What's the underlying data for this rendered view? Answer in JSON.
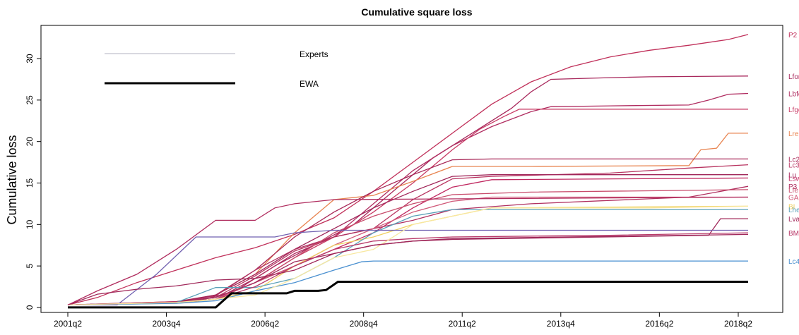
{
  "chart_data": {
    "type": "line",
    "title": "Cumulative square loss",
    "xlabel": "",
    "ylabel": "Cumulative loss",
    "xlim": [
      2001.25,
      2018.9
    ],
    "ylim": [
      -0.6,
      34
    ],
    "x_tick_labels": [
      "2001q2",
      "2003q4",
      "2006q2",
      "2008q4",
      "2011q2",
      "2013q4",
      "2016q2",
      "2018q2"
    ],
    "x_tick_values": [
      2001.25,
      2003.75,
      2006.25,
      2008.75,
      2011.25,
      2013.75,
      2016.25,
      2018.25
    ],
    "y_ticks": [
      0,
      5,
      10,
      15,
      20,
      25,
      30
    ],
    "legend": {
      "position": "top-left",
      "items": [
        {
          "label": "Experts",
          "color": "#b0b0c0"
        },
        {
          "label": "EWA",
          "color": "#000000"
        }
      ]
    },
    "grid": false,
    "series": [
      {
        "name": "P2",
        "color": "#c0305a",
        "points": [
          [
            2001.25,
            0.3
          ],
          [
            2002.0,
            1.2
          ],
          [
            2003.0,
            3.0
          ],
          [
            2004.0,
            4.5
          ],
          [
            2005.0,
            6.0
          ],
          [
            2006.0,
            7.2
          ],
          [
            2007.0,
            8.8
          ],
          [
            2008.0,
            10.8
          ],
          [
            2009.0,
            14.0
          ],
          [
            2010.0,
            17.5
          ],
          [
            2011.0,
            21.0
          ],
          [
            2012.0,
            24.5
          ],
          [
            2013.0,
            27.2
          ],
          [
            2014.0,
            29.0
          ],
          [
            2015.0,
            30.2
          ],
          [
            2016.0,
            31.0
          ],
          [
            2017.0,
            31.6
          ],
          [
            2018.0,
            32.3
          ],
          [
            2018.5,
            32.9
          ]
        ]
      },
      {
        "name": "Lfor",
        "color": "#a8285c",
        "points": [
          [
            2001.25,
            0.3
          ],
          [
            2003.0,
            0.5
          ],
          [
            2004.5,
            0.7
          ],
          [
            2005.5,
            2.0
          ],
          [
            2006.5,
            5.0
          ],
          [
            2007.5,
            7.5
          ],
          [
            2008.5,
            10.0
          ],
          [
            2009.5,
            14.0
          ],
          [
            2010.5,
            18.0
          ],
          [
            2011.5,
            21.0
          ],
          [
            2012.5,
            24.0
          ],
          [
            2013.0,
            26.0
          ],
          [
            2013.5,
            27.5
          ],
          [
            2015.0,
            27.7
          ],
          [
            2016.0,
            27.8
          ],
          [
            2018.5,
            27.9
          ]
        ]
      },
      {
        "name": "Lbfc",
        "color": "#b02c60",
        "points": [
          [
            2001.25,
            0.3
          ],
          [
            2004.0,
            0.6
          ],
          [
            2005.0,
            1.0
          ],
          [
            2006.0,
            3.5
          ],
          [
            2007.0,
            6.5
          ],
          [
            2008.0,
            8.5
          ],
          [
            2009.0,
            12.5
          ],
          [
            2010.0,
            16.5
          ],
          [
            2011.0,
            19.5
          ],
          [
            2012.0,
            21.8
          ],
          [
            2013.0,
            23.6
          ],
          [
            2013.5,
            24.2
          ],
          [
            2015.0,
            24.3
          ],
          [
            2017.0,
            24.4
          ],
          [
            2017.5,
            25.0
          ],
          [
            2018.0,
            25.7
          ],
          [
            2018.5,
            25.8
          ]
        ]
      },
      {
        "name": "Lfgc",
        "color": "#c83c66",
        "points": [
          [
            2001.25,
            0.3
          ],
          [
            2004.0,
            0.6
          ],
          [
            2005.0,
            1.0
          ],
          [
            2006.0,
            3.0
          ],
          [
            2007.0,
            6.0
          ],
          [
            2008.0,
            8.5
          ],
          [
            2009.0,
            11.5
          ],
          [
            2010.0,
            15.0
          ],
          [
            2011.0,
            19.0
          ],
          [
            2011.7,
            21.5
          ],
          [
            2012.3,
            23.0
          ],
          [
            2012.7,
            23.9
          ],
          [
            2018.5,
            23.9
          ]
        ]
      },
      {
        "name": "Lre",
        "color": "#e88450",
        "points": [
          [
            2001.25,
            0.3
          ],
          [
            2004.0,
            0.6
          ],
          [
            2005.0,
            1.5
          ],
          [
            2006.0,
            4.0
          ],
          [
            2007.0,
            9.0
          ],
          [
            2008.0,
            13.0
          ],
          [
            2009.0,
            13.5
          ],
          [
            2010.0,
            15.2
          ],
          [
            2011.0,
            17.0
          ],
          [
            2013.0,
            17.0
          ],
          [
            2017.0,
            17.1
          ],
          [
            2017.3,
            19.0
          ],
          [
            2017.7,
            19.2
          ],
          [
            2018.0,
            21.0
          ],
          [
            2018.5,
            21.0
          ]
        ]
      },
      {
        "name": "Lc2",
        "color": "#a82858",
        "points": [
          [
            2001.25,
            0.3
          ],
          [
            2004.0,
            0.7
          ],
          [
            2005.0,
            1.5
          ],
          [
            2006.0,
            4.5
          ],
          [
            2007.0,
            8.5
          ],
          [
            2008.0,
            11.5
          ],
          [
            2009.0,
            14.0
          ],
          [
            2010.0,
            16.0
          ],
          [
            2011.0,
            17.8
          ],
          [
            2012.0,
            17.9
          ],
          [
            2018.5,
            17.9
          ]
        ]
      },
      {
        "name": "Lc3",
        "color": "#b83460",
        "points": [
          [
            2001.25,
            0.3
          ],
          [
            2004.0,
            0.7
          ],
          [
            2005.0,
            1.2
          ],
          [
            2006.0,
            3.8
          ],
          [
            2007.0,
            6.8
          ],
          [
            2008.0,
            8.5
          ],
          [
            2009.0,
            9.5
          ],
          [
            2010.0,
            13.0
          ],
          [
            2011.0,
            15.5
          ],
          [
            2012.0,
            15.8
          ],
          [
            2015.0,
            16.2
          ],
          [
            2017.0,
            16.8
          ],
          [
            2018.5,
            17.2
          ]
        ]
      },
      {
        "name": "Lu",
        "color": "#a02458",
        "points": [
          [
            2001.25,
            0.3
          ],
          [
            2004.0,
            0.6
          ],
          [
            2005.0,
            1.5
          ],
          [
            2006.0,
            4.0
          ],
          [
            2007.0,
            7.0
          ],
          [
            2008.0,
            9.5
          ],
          [
            2009.0,
            12.0
          ],
          [
            2010.0,
            14.0
          ],
          [
            2011.0,
            15.8
          ],
          [
            2012.0,
            16.0
          ],
          [
            2018.5,
            16.0
          ]
        ]
      },
      {
        "name": "Lsw",
        "color": "#c02860",
        "points": [
          [
            2001.25,
            0.3
          ],
          [
            2004.0,
            0.6
          ],
          [
            2005.0,
            1.0
          ],
          [
            2006.0,
            3.0
          ],
          [
            2007.0,
            5.0
          ],
          [
            2008.0,
            7.0
          ],
          [
            2009.0,
            9.0
          ],
          [
            2010.0,
            12.0
          ],
          [
            2011.0,
            14.5
          ],
          [
            2012.0,
            15.4
          ],
          [
            2018.5,
            15.6
          ]
        ]
      },
      {
        "name": "P3",
        "color": "#b03060",
        "points": [
          [
            2001.25,
            0.3
          ],
          [
            2004.0,
            0.6
          ],
          [
            2005.0,
            1.4
          ],
          [
            2006.0,
            4.5
          ],
          [
            2007.0,
            7.0
          ],
          [
            2008.0,
            8.5
          ],
          [
            2009.0,
            9.5
          ],
          [
            2010.0,
            10.5
          ],
          [
            2011.0,
            11.8
          ],
          [
            2013.0,
            12.5
          ],
          [
            2017.0,
            13.3
          ],
          [
            2018.5,
            14.6
          ]
        ]
      },
      {
        "name": "Lfe",
        "color": "#c84c6c",
        "points": [
          [
            2001.25,
            0.3
          ],
          [
            2004.0,
            0.6
          ],
          [
            2005.0,
            1.0
          ],
          [
            2006.0,
            3.0
          ],
          [
            2007.0,
            6.0
          ],
          [
            2008.0,
            9.0
          ],
          [
            2009.0,
            11.0
          ],
          [
            2010.0,
            12.5
          ],
          [
            2011.0,
            13.6
          ],
          [
            2013.0,
            13.9
          ],
          [
            2018.5,
            14.2
          ]
        ]
      },
      {
        "name": "GA",
        "color": "#d05878",
        "points": [
          [
            2001.25,
            0.3
          ],
          [
            2004.0,
            0.6
          ],
          [
            2005.0,
            1.0
          ],
          [
            2006.0,
            3.0
          ],
          [
            2007.0,
            5.0
          ],
          [
            2008.0,
            7.5
          ],
          [
            2009.0,
            9.5
          ],
          [
            2010.0,
            11.5
          ],
          [
            2011.0,
            12.8
          ],
          [
            2012.0,
            13.3
          ],
          [
            2018.5,
            13.3
          ]
        ]
      },
      {
        "name": "BI",
        "color": "#f0d060",
        "points": [
          [
            2001.25,
            0.3
          ],
          [
            2004.0,
            0.5
          ],
          [
            2005.0,
            1.0
          ],
          [
            2006.0,
            2.0
          ],
          [
            2007.0,
            5.0
          ],
          [
            2008.0,
            7.5
          ],
          [
            2009.0,
            8.5
          ],
          [
            2010.0,
            10.0
          ],
          [
            2011.0,
            11.0
          ],
          [
            2012.0,
            12.0
          ],
          [
            2018.5,
            12.2
          ]
        ]
      },
      {
        "name": "Lhe",
        "color": "#5aa0b8",
        "points": [
          [
            2001.25,
            0.3
          ],
          [
            2004.0,
            0.6
          ],
          [
            2005.0,
            2.4
          ],
          [
            2006.0,
            2.4
          ],
          [
            2007.0,
            3.5
          ],
          [
            2008.0,
            6.0
          ],
          [
            2009.0,
            9.0
          ],
          [
            2010.0,
            11.0
          ],
          [
            2011.0,
            11.8
          ],
          [
            2018.5,
            11.8
          ]
        ]
      },
      {
        "name": "Lva",
        "color": "#a0285a",
        "points": [
          [
            2001.25,
            0.3
          ],
          [
            2004.0,
            0.6
          ],
          [
            2005.0,
            1.2
          ],
          [
            2006.0,
            3.0
          ],
          [
            2007.0,
            5.5
          ],
          [
            2008.0,
            6.5
          ],
          [
            2009.0,
            7.5
          ],
          [
            2010.0,
            8.0
          ],
          [
            2011.0,
            8.2
          ],
          [
            2017.5,
            8.7
          ],
          [
            2017.8,
            10.7
          ],
          [
            2018.5,
            10.7
          ]
        ]
      },
      {
        "name": "BM",
        "color": "#b83868",
        "points": [
          [
            2001.25,
            0.3
          ],
          [
            2004.0,
            0.6
          ],
          [
            2005.0,
            1.0
          ],
          [
            2006.0,
            2.5
          ],
          [
            2007.0,
            5.0
          ],
          [
            2008.0,
            7.0
          ],
          [
            2009.0,
            8.0
          ],
          [
            2010.0,
            8.3
          ],
          [
            2011.0,
            8.5
          ],
          [
            2015.0,
            8.7
          ],
          [
            2018.5,
            9.0
          ]
        ]
      },
      {
        "name": "Lc4",
        "color": "#4a90d0",
        "points": [
          [
            2001.25,
            0.3
          ],
          [
            2004.0,
            0.5
          ],
          [
            2005.0,
            0.8
          ],
          [
            2006.0,
            2.0
          ],
          [
            2007.0,
            3.0
          ],
          [
            2008.0,
            4.5
          ],
          [
            2008.7,
            5.5
          ],
          [
            2009.0,
            5.6
          ],
          [
            2018.5,
            5.6
          ]
        ]
      },
      {
        "name": "",
        "color": "#7060b0",
        "points": [
          [
            2001.25,
            0.3
          ],
          [
            2002.5,
            0.3
          ],
          [
            2003.5,
            4.0
          ],
          [
            2004.5,
            8.5
          ],
          [
            2005.5,
            8.5
          ],
          [
            2006.5,
            8.5
          ],
          [
            2007.0,
            9.0
          ],
          [
            2008.0,
            9.3
          ],
          [
            2018.5,
            9.3
          ]
        ]
      },
      {
        "name": "",
        "color": "#f8e8a0",
        "points": [
          [
            2001.25,
            0.3
          ],
          [
            2004.0,
            0.6
          ],
          [
            2005.0,
            1.0
          ],
          [
            2006.0,
            1.5
          ],
          [
            2007.0,
            3.5
          ],
          [
            2008.0,
            6.0
          ],
          [
            2009.0,
            7.0
          ],
          [
            2010.0,
            10.0
          ],
          [
            2011.0,
            11.0
          ],
          [
            2012.0,
            12.0
          ],
          [
            2016.0,
            12.0
          ],
          [
            2018.5,
            12.2
          ]
        ]
      },
      {
        "name": "",
        "color": "#a0285a",
        "points": [
          [
            2001.25,
            0.3
          ],
          [
            2002.0,
            1.6
          ],
          [
            2003.0,
            2.2
          ],
          [
            2004.0,
            2.6
          ],
          [
            2005.0,
            3.3
          ],
          [
            2006.0,
            3.5
          ],
          [
            2007.0,
            4.5
          ],
          [
            2008.0,
            6.5
          ],
          [
            2009.0,
            7.5
          ],
          [
            2010.0,
            8.0
          ],
          [
            2011.0,
            8.3
          ],
          [
            2018.5,
            8.8
          ]
        ]
      },
      {
        "name": "",
        "color": "#b02c5e",
        "points": [
          [
            2001.25,
            0.3
          ],
          [
            2002.0,
            2.0
          ],
          [
            2003.0,
            4.0
          ],
          [
            2004.0,
            7.0
          ],
          [
            2005.0,
            10.5
          ],
          [
            2006.0,
            10.5
          ],
          [
            2006.5,
            12.0
          ],
          [
            2007.0,
            12.5
          ],
          [
            2008.0,
            13.0
          ],
          [
            2018.5,
            13.3
          ]
        ]
      }
    ],
    "ewa": {
      "name": "EWA",
      "color": "#000000",
      "points": [
        [
          2001.25,
          0.0
        ],
        [
          2005.0,
          0.0
        ],
        [
          2005.4,
          1.7
        ],
        [
          2006.8,
          1.7
        ],
        [
          2007.0,
          2.0
        ],
        [
          2007.6,
          2.0
        ],
        [
          2007.8,
          2.1
        ],
        [
          2008.1,
          3.1
        ],
        [
          2018.5,
          3.1
        ]
      ]
    }
  }
}
